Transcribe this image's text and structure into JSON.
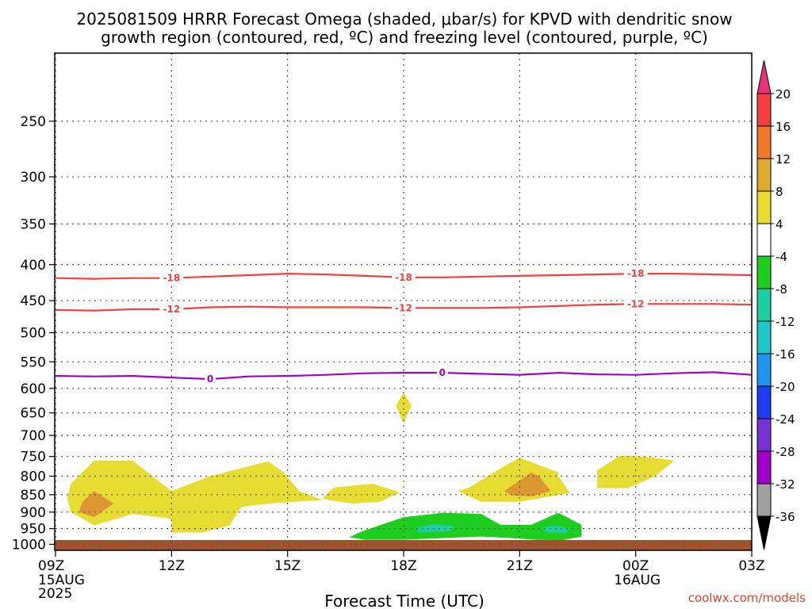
{
  "chart_data": {
    "type": "contour",
    "title_line1": "2025081509 HRRR Forecast Omega (shaded, μbar/s) for KPVD with dendritic snow",
    "title_line2": "growth region (contoured, red, ºC) and freezing level (contoured, purple, ºC)",
    "xlabel": "Forecast Time (UTC)",
    "credit": "coolwx.com/models",
    "x_ticks": [
      {
        "hour": 0,
        "label": "09Z",
        "sub": [
          "15AUG",
          "2025"
        ]
      },
      {
        "hour": 3,
        "label": "12Z",
        "sub": []
      },
      {
        "hour": 6,
        "label": "15Z",
        "sub": []
      },
      {
        "hour": 9,
        "label": "18Z",
        "sub": []
      },
      {
        "hour": 12,
        "label": "21Z",
        "sub": []
      },
      {
        "hour": 15,
        "label": "00Z",
        "sub": [
          "16AUG"
        ]
      },
      {
        "hour": 18,
        "label": "03Z",
        "sub": []
      }
    ],
    "x_range_hours": [
      0,
      18
    ],
    "y_ticks": [
      250,
      300,
      350,
      400,
      450,
      500,
      550,
      600,
      650,
      700,
      750,
      800,
      850,
      900,
      950,
      1000
    ],
    "y_range_hPa": [
      200,
      1020
    ],
    "y_scale": "log-pressure, inverted",
    "grid": true,
    "contours": [
      {
        "label": "-18",
        "color": "#f04040",
        "label_hours": [
          3,
          9,
          15
        ],
        "points": [
          [
            0,
            418
          ],
          [
            1,
            419
          ],
          [
            2,
            418
          ],
          [
            3,
            418
          ],
          [
            4,
            416
          ],
          [
            5,
            414
          ],
          [
            6,
            412
          ],
          [
            7,
            413
          ],
          [
            8,
            415
          ],
          [
            9,
            417
          ],
          [
            10,
            417
          ],
          [
            11,
            416
          ],
          [
            12,
            415
          ],
          [
            13,
            414
          ],
          [
            14,
            413
          ],
          [
            15,
            412
          ],
          [
            16,
            412
          ],
          [
            17,
            413
          ],
          [
            18,
            414
          ]
        ]
      },
      {
        "label": "-12",
        "color": "#f04040",
        "label_hours": [
          3,
          9,
          15
        ],
        "points": [
          [
            0,
            464
          ],
          [
            1,
            465
          ],
          [
            2,
            463
          ],
          [
            3,
            463
          ],
          [
            4,
            460
          ],
          [
            5,
            459
          ],
          [
            6,
            460
          ],
          [
            7,
            460
          ],
          [
            8,
            460
          ],
          [
            9,
            461
          ],
          [
            10,
            461
          ],
          [
            11,
            461
          ],
          [
            12,
            460
          ],
          [
            13,
            458
          ],
          [
            14,
            456
          ],
          [
            15,
            455
          ],
          [
            16,
            455
          ],
          [
            17,
            455
          ],
          [
            18,
            456
          ]
        ]
      },
      {
        "label": "0",
        "color": "#a000c8",
        "label_hours": [
          4,
          10
        ],
        "points": [
          [
            0,
            576
          ],
          [
            1,
            577
          ],
          [
            2,
            576
          ],
          [
            3,
            579
          ],
          [
            4,
            582
          ],
          [
            5,
            577
          ],
          [
            6,
            576
          ],
          [
            7,
            574
          ],
          [
            8,
            571
          ],
          [
            9,
            570
          ],
          [
            10,
            570
          ],
          [
            11,
            572
          ],
          [
            12,
            574
          ],
          [
            13,
            570
          ],
          [
            14,
            573
          ],
          [
            15,
            574
          ],
          [
            16,
            571
          ],
          [
            17,
            569
          ],
          [
            18,
            574
          ]
        ]
      }
    ],
    "shaded_regions": [
      {
        "level": "4 to 8",
        "color": "#e6dc32",
        "points": [
          [
            0.4,
            820
          ],
          [
            1,
            760
          ],
          [
            2,
            760
          ],
          [
            2.5,
            800
          ],
          [
            3,
            840
          ],
          [
            4,
            800
          ],
          [
            5.5,
            762
          ],
          [
            5.9,
            790
          ],
          [
            6.3,
            840
          ],
          [
            6.9,
            865
          ],
          [
            5.5,
            875
          ],
          [
            4.8,
            885
          ],
          [
            4.5,
            940
          ],
          [
            3.8,
            962
          ],
          [
            3,
            962
          ],
          [
            3,
            920
          ],
          [
            2,
            905
          ],
          [
            1,
            940
          ],
          [
            0.4,
            900
          ],
          [
            0.3,
            860
          ]
        ]
      },
      {
        "level": "4 to 8",
        "color": "#e6dc32",
        "points": [
          [
            9,
            608
          ],
          [
            9.2,
            635
          ],
          [
            9,
            672
          ],
          [
            8.8,
            635
          ]
        ]
      },
      {
        "level": "4 to 8",
        "color": "#e6dc32",
        "points": [
          [
            7.2,
            830
          ],
          [
            8.2,
            820
          ],
          [
            8.9,
            843
          ],
          [
            8.4,
            870
          ],
          [
            7.7,
            875
          ],
          [
            7.1,
            866
          ],
          [
            6.9,
            860
          ]
        ]
      },
      {
        "level": "4 to 8",
        "color": "#e6dc32",
        "points": [
          [
            10.7,
            830
          ],
          [
            11.5,
            780
          ],
          [
            12,
            753
          ],
          [
            13,
            790
          ],
          [
            13,
            800
          ],
          [
            13.3,
            845
          ],
          [
            12,
            870
          ],
          [
            11,
            870
          ],
          [
            10.4,
            840
          ]
        ]
      },
      {
        "level": "4 to 8",
        "color": "#e6dc32",
        "points": [
          [
            14,
            785
          ],
          [
            14.6,
            748
          ],
          [
            15.2,
            750
          ],
          [
            16,
            760
          ],
          [
            15.5,
            800
          ],
          [
            14.8,
            832
          ],
          [
            14,
            832
          ]
        ]
      },
      {
        "level": "12 to 16",
        "color": "#dc9632",
        "points": [
          [
            0.7,
            870
          ],
          [
            1,
            840
          ],
          [
            1.5,
            875
          ],
          [
            1,
            915
          ],
          [
            0.6,
            900
          ]
        ]
      },
      {
        "level": "12 to 16",
        "color": "#dc9632",
        "points": [
          [
            11.6,
            840
          ],
          [
            12.3,
            790
          ],
          [
            12.5,
            800
          ],
          [
            12.8,
            840
          ],
          [
            12.3,
            855
          ],
          [
            11.8,
            852
          ]
        ]
      },
      {
        "level": "-8 to -4",
        "color": "#1ece1e",
        "points": [
          [
            7.8,
            965
          ],
          [
            8,
            955
          ],
          [
            9,
            915
          ],
          [
            10,
            902
          ],
          [
            11,
            905
          ],
          [
            11.5,
            938
          ],
          [
            12.3,
            938
          ],
          [
            13,
            902
          ],
          [
            13.6,
            938
          ],
          [
            13.6,
            975
          ],
          [
            13.1,
            987
          ],
          [
            12.4,
            985
          ],
          [
            11.8,
            980
          ],
          [
            11,
            975
          ],
          [
            10,
            980
          ],
          [
            9,
            985
          ],
          [
            8,
            985
          ],
          [
            7.6,
            978
          ]
        ]
      },
      {
        "level": "-12 to -8",
        "color": "#1ecea0",
        "points": [
          [
            9.3,
            948
          ],
          [
            9.8,
            935
          ],
          [
            10.3,
            942
          ],
          [
            10.2,
            958
          ],
          [
            9.4,
            962
          ]
        ]
      },
      {
        "level": "-12 to -8",
        "color": "#1ecea0",
        "points": [
          [
            12.6,
            948
          ],
          [
            12.9,
            940
          ],
          [
            13.3,
            950
          ],
          [
            13.2,
            963
          ],
          [
            12.7,
            962
          ]
        ]
      }
    ],
    "surface_color": "#a0522d",
    "colorbar": {
      "labels": [
        "20",
        "16",
        "12",
        "8",
        "4",
        "-4",
        "-8",
        "-12",
        "-16",
        "-20",
        "-24",
        "-28",
        "-32",
        "-36"
      ],
      "colors": [
        "#e8327a",
        "#f04040",
        "#f07828",
        "#dcaa32",
        "#e6dc32",
        "#ffffff",
        "#1ece1e",
        "#1ecea0",
        "#1ec8c8",
        "#1e96f0",
        "#1e3cf0",
        "#7832d2",
        "#a000c8",
        "#a0a0a0",
        "#000000"
      ]
    }
  }
}
